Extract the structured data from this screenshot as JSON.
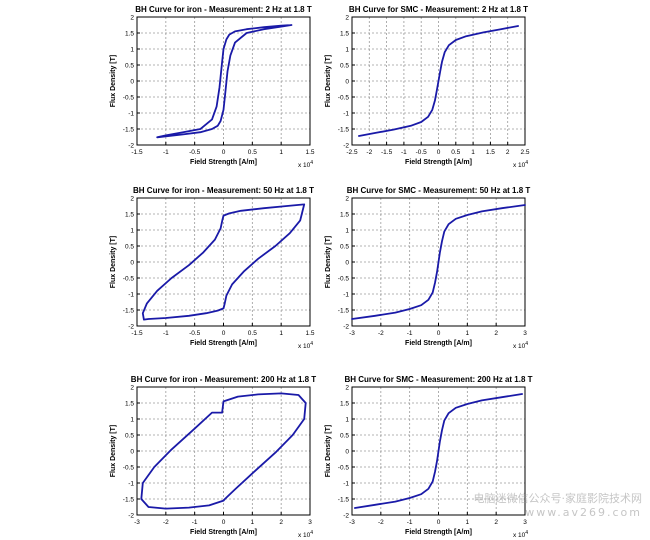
{
  "figure": {
    "colors": {
      "curve": "#1a1aa8",
      "grid": "#9a9a9a",
      "axis": "#000000",
      "text": "#000000"
    },
    "watermark": {
      "line1": "电脑迷微信公众号·家庭影院技术网",
      "line2": "www.av269.com"
    }
  },
  "chart_data": [
    {
      "type": "line",
      "title": "BH Curve for iron - Measurement: 2 Hz at 1.8 T",
      "xlabel": "Field Strength [A/m]",
      "ylabel": "Flux Density [T]",
      "x_multiplier": "x 10^4",
      "xlim": [
        -1.5,
        1.5
      ],
      "ylim": [
        -2,
        2
      ],
      "xticks": [
        -1.5,
        -1,
        -0.5,
        0,
        0.5,
        1,
        1.5
      ],
      "xtick_labels": [
        "-1.5",
        "-1",
        "-0.5",
        "0",
        "0.5",
        "1",
        "1.5"
      ],
      "yticks": [
        -2,
        -1.5,
        -1,
        -0.5,
        0,
        0.5,
        1,
        1.5,
        2
      ],
      "ytick_labels": [
        "-2",
        "-1.5",
        "-1",
        "-0.5",
        "0",
        "0.5",
        "1",
        "1.5",
        "2"
      ],
      "grid": true,
      "series": [
        {
          "x": [
            1.18,
            1.0,
            0.7,
            0.4,
            0.2,
            0.1,
            0.05,
            0.0,
            -0.03,
            -0.07,
            -0.12,
            -0.2,
            -0.4,
            -0.7,
            -1.0,
            -1.15,
            -1.0,
            -0.7,
            -0.4,
            -0.2,
            -0.1,
            -0.05,
            0.0,
            0.03,
            0.07,
            0.12,
            0.2,
            0.4,
            0.7,
            1.0,
            1.18
          ],
          "y": [
            1.75,
            1.73,
            1.68,
            1.62,
            1.55,
            1.45,
            1.3,
            1.0,
            0.5,
            -0.2,
            -0.8,
            -1.2,
            -1.5,
            -1.6,
            -1.7,
            -1.76,
            -1.73,
            -1.67,
            -1.6,
            -1.5,
            -1.4,
            -1.25,
            -0.9,
            -0.4,
            0.3,
            0.8,
            1.2,
            1.5,
            1.62,
            1.7,
            1.75
          ]
        }
      ]
    },
    {
      "type": "line",
      "title": "BH Curve for SMC - Measurement: 2 Hz at 1.8 T",
      "xlabel": "Field Strength [A/m]",
      "ylabel": "Flux Density [T]",
      "x_multiplier": "x 10^4",
      "xlim": [
        -2.5,
        2.5
      ],
      "ylim": [
        -2,
        2
      ],
      "xticks": [
        -2.5,
        -2,
        -1.5,
        -1,
        -0.5,
        0,
        0.5,
        1,
        1.5,
        2,
        2.5
      ],
      "xtick_labels": [
        "-2.5",
        "-2",
        "-1.5",
        "-1",
        "-0.5",
        "0",
        "0.5",
        "1",
        "1.5",
        "2",
        "2.5"
      ],
      "yticks": [
        -2,
        -1.5,
        -1,
        -0.5,
        0,
        0.5,
        1,
        1.5,
        2
      ],
      "ytick_labels": [
        "-2",
        "-1.5",
        "-1",
        "-0.5",
        "0",
        "0.5",
        "1",
        "1.5",
        "2"
      ],
      "grid": true,
      "series": [
        {
          "x": [
            -2.3,
            -1.8,
            -1.3,
            -0.8,
            -0.5,
            -0.3,
            -0.18,
            -0.1,
            -0.05,
            0.0,
            0.05,
            0.1,
            0.18,
            0.3,
            0.5,
            0.8,
            1.3,
            1.8,
            2.3
          ],
          "y": [
            -1.72,
            -1.62,
            -1.52,
            -1.4,
            -1.28,
            -1.12,
            -0.9,
            -0.6,
            -0.3,
            0.0,
            0.3,
            0.6,
            0.9,
            1.12,
            1.28,
            1.4,
            1.52,
            1.62,
            1.72
          ]
        }
      ]
    },
    {
      "type": "line",
      "title": "BH Curve for iron - Measurement: 50 Hz at 1.8 T",
      "xlabel": "Field Strength [A/m]",
      "ylabel": "Flux Density [T]",
      "x_multiplier": "x 10^4",
      "xlim": [
        -1.5,
        1.5
      ],
      "ylim": [
        -2,
        2
      ],
      "xticks": [
        -1.5,
        -1,
        -0.5,
        0,
        0.5,
        1,
        1.5
      ],
      "xtick_labels": [
        "-1.5",
        "-1",
        "-0.5",
        "0",
        "0.5",
        "1",
        "1.5"
      ],
      "yticks": [
        -2,
        -1.5,
        -1,
        -0.5,
        0,
        0.5,
        1,
        1.5,
        2
      ],
      "ytick_labels": [
        "-2",
        "-1.5",
        "-1",
        "-0.5",
        "0",
        "0.5",
        "1",
        "1.5",
        "2"
      ],
      "grid": true,
      "series": [
        {
          "x": [
            1.4,
            1.1,
            0.7,
            0.3,
            0.1,
            0.0,
            -0.02,
            -0.05,
            -0.15,
            -0.35,
            -0.6,
            -0.9,
            -1.15,
            -1.33,
            -1.4,
            -1.38,
            -1.3,
            -1.0,
            -0.6,
            -0.3,
            -0.1,
            0.0,
            0.02,
            0.05,
            0.15,
            0.35,
            0.6,
            0.9,
            1.15,
            1.33,
            1.4
          ],
          "y": [
            1.8,
            1.75,
            1.68,
            1.6,
            1.52,
            1.45,
            1.3,
            1.05,
            0.7,
            0.3,
            -0.1,
            -0.5,
            -0.9,
            -1.3,
            -1.6,
            -1.8,
            -1.78,
            -1.75,
            -1.68,
            -1.6,
            -1.52,
            -1.45,
            -1.3,
            -1.05,
            -0.7,
            -0.3,
            0.1,
            0.5,
            0.9,
            1.3,
            1.8
          ]
        }
      ]
    },
    {
      "type": "line",
      "title": "BH Curve for SMC - Measurement: 50 Hz at 1.8 T",
      "xlabel": "Field Strength [A/m]",
      "ylabel": "Flux Density [T]",
      "x_multiplier": "x 10^4",
      "xlim": [
        -3,
        3
      ],
      "ylim": [
        -2,
        2
      ],
      "xticks": [
        -3,
        -2,
        -1,
        0,
        1,
        2,
        3
      ],
      "xtick_labels": [
        "-3",
        "-2",
        "-1",
        "0",
        "1",
        "2",
        "3"
      ],
      "yticks": [
        -2,
        -1.5,
        -1,
        -0.5,
        0,
        0.5,
        1,
        1.5,
        2
      ],
      "ytick_labels": [
        "-2",
        "-1.5",
        "-1",
        "-0.5",
        "0",
        "0.5",
        "1",
        "1.5",
        "2"
      ],
      "grid": true,
      "series": [
        {
          "x": [
            -3.0,
            -2.2,
            -1.5,
            -1.0,
            -0.6,
            -0.35,
            -0.2,
            -0.12,
            -0.05,
            0.0,
            0.05,
            0.12,
            0.2,
            0.35,
            0.6,
            1.0,
            1.5,
            2.2,
            3.0
          ],
          "y": [
            -1.78,
            -1.68,
            -1.58,
            -1.47,
            -1.35,
            -1.18,
            -0.95,
            -0.65,
            -0.3,
            0.0,
            0.3,
            0.65,
            0.95,
            1.18,
            1.35,
            1.47,
            1.58,
            1.68,
            1.78
          ]
        }
      ]
    },
    {
      "type": "line",
      "title": "BH Curve for iron - Measurement: 200 Hz at 1.8 T",
      "xlabel": "Field Strength [A/m]",
      "ylabel": "Flux Density [T]",
      "x_multiplier": "x 10^4",
      "xlim": [
        -3,
        3
      ],
      "ylim": [
        -2,
        2
      ],
      "xticks": [
        -3,
        -2,
        -1,
        0,
        1,
        2,
        3
      ],
      "xtick_labels": [
        "-3",
        "-2",
        "-1",
        "0",
        "1",
        "2",
        "3"
      ],
      "yticks": [
        -2,
        -1.5,
        -1,
        -0.5,
        0,
        0.5,
        1,
        1.5,
        2
      ],
      "ytick_labels": [
        "-2",
        "-1.5",
        "-1",
        "-0.5",
        "0",
        "0.5",
        "1",
        "1.5",
        "2"
      ],
      "grid": true,
      "series": [
        {
          "x": [
            -0.05,
            0.0,
            0.5,
            1.2,
            2.0,
            2.6,
            2.85,
            2.8,
            2.4,
            1.8,
            1.0,
            0.4,
            0.05,
            0.0,
            -0.5,
            -1.2,
            -2.0,
            -2.6,
            -2.85,
            -2.8,
            -2.4,
            -1.8,
            -1.0,
            -0.4,
            -0.05
          ],
          "y": [
            1.2,
            1.55,
            1.7,
            1.77,
            1.8,
            1.75,
            1.5,
            1.0,
            0.5,
            -0.05,
            -0.7,
            -1.2,
            -1.5,
            -1.55,
            -1.7,
            -1.77,
            -1.8,
            -1.75,
            -1.5,
            -1.0,
            -0.5,
            0.05,
            0.7,
            1.2,
            1.2
          ]
        }
      ]
    },
    {
      "type": "line",
      "title": "BH Curve for SMC - Measurement: 200 Hz at 1.8 T",
      "xlabel": "Field Strength [A/m]",
      "ylabel": "Flux Density [T]",
      "x_multiplier": "x 10^4",
      "xlim": [
        -3,
        3
      ],
      "ylim": [
        -2,
        2
      ],
      "xticks": [
        -3,
        -2,
        -1,
        0,
        1,
        2,
        3
      ],
      "xtick_labels": [
        "-3",
        "-2",
        "-1",
        "0",
        "1",
        "2",
        "3"
      ],
      "yticks": [
        -2,
        -1.5,
        -1,
        -0.5,
        0,
        0.5,
        1,
        1.5,
        2
      ],
      "ytick_labels": [
        "-2",
        "-1.5",
        "-1",
        "-0.5",
        "0",
        "0.5",
        "1",
        "1.5",
        "2"
      ],
      "grid": true,
      "series": [
        {
          "x": [
            -2.9,
            -2.2,
            -1.5,
            -1.0,
            -0.6,
            -0.35,
            -0.2,
            -0.12,
            -0.05,
            0.0,
            0.05,
            0.12,
            0.2,
            0.35,
            0.6,
            1.0,
            1.5,
            2.2,
            2.9
          ],
          "y": [
            -1.78,
            -1.68,
            -1.58,
            -1.47,
            -1.35,
            -1.18,
            -0.95,
            -0.65,
            -0.3,
            0.0,
            0.3,
            0.65,
            0.95,
            1.18,
            1.35,
            1.47,
            1.58,
            1.68,
            1.78
          ]
        }
      ]
    }
  ]
}
